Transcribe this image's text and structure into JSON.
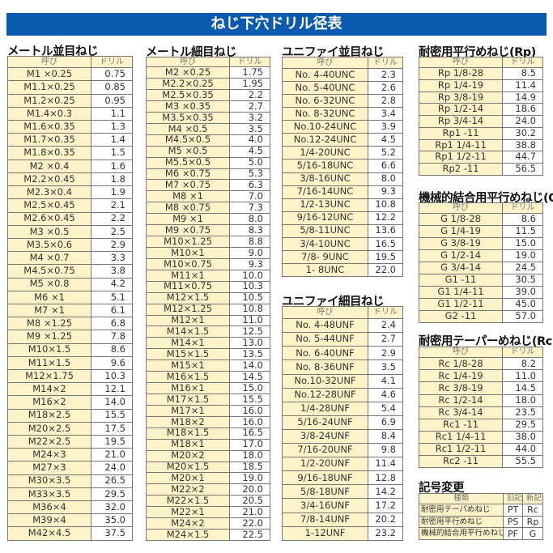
{
  "title": "ねじ下穴ドリル径表",
  "header_labels": {
    "name": "呼び",
    "drill": "ドリル"
  },
  "colors": {
    "title_bg": "#0a5bb0",
    "name_cell_bg": "#fdf3c8"
  },
  "tables": {
    "metric_coarse": {
      "title": "メートル並目ねじ",
      "rows": [
        [
          "M1 ×0.25",
          "0.75"
        ],
        [
          "M1.1×0.25",
          "0.85"
        ],
        [
          "M1.2×0.25",
          "0.95"
        ],
        [
          "M1.4×0.3",
          "1.1"
        ],
        [
          "M1.6×0.35",
          "1.3"
        ],
        [
          "M1.7×0.35",
          "1.4"
        ],
        [
          "M1.8×0.35",
          "1.5"
        ],
        [
          "M2 ×0.4",
          "1.6"
        ],
        [
          "M2.2×0.45",
          "1.8"
        ],
        [
          "M2.3×0.4",
          "1.9"
        ],
        [
          "M2.5×0.45",
          "2.1"
        ],
        [
          "M2.6×0.45",
          "2.2"
        ],
        [
          "M3 ×0.5",
          "2.5"
        ],
        [
          "M3.5×0.6",
          "2.9"
        ],
        [
          "M4 ×0.7",
          "3.3"
        ],
        [
          "M4.5×0.75",
          "3.8"
        ],
        [
          "M5 ×0.8",
          "4.2"
        ],
        [
          "M6 ×1",
          "5.1"
        ],
        [
          "M7 ×1",
          "6.1"
        ],
        [
          "M8 ×1.25",
          "6.8"
        ],
        [
          "M9 ×1.25",
          "7.8"
        ],
        [
          "M10×1.5",
          "8.6"
        ],
        [
          "M11×1.5",
          "9.6"
        ],
        [
          "M12×1.75",
          "10.3"
        ],
        [
          "M14×2",
          "12.1"
        ],
        [
          "M16×2",
          "14.0"
        ],
        [
          "M18×2.5",
          "15.5"
        ],
        [
          "M20×2.5",
          "17.5"
        ],
        [
          "M22×2.5",
          "19.5"
        ],
        [
          "M24×3",
          "21.0"
        ],
        [
          "M27×3",
          "24.0"
        ],
        [
          "M30×3.5",
          "26.5"
        ],
        [
          "M33×3.5",
          "29.5"
        ],
        [
          "M36×4",
          "32.0"
        ],
        [
          "M39×4",
          "35.0"
        ],
        [
          "M42×4.5",
          "37.5"
        ]
      ]
    },
    "metric_fine": {
      "title": "メートル細目ねじ",
      "rows": [
        [
          "M2 ×0.25",
          "1.75"
        ],
        [
          "M2.2×0.25",
          "1.95"
        ],
        [
          "M2.5×0.35",
          "2.2"
        ],
        [
          "M3 ×0.35",
          "2.7"
        ],
        [
          "M3.5×0.35",
          "3.2"
        ],
        [
          "M4 ×0.5",
          "3.5"
        ],
        [
          "M4.5×0.5",
          "4.0"
        ],
        [
          "M5 ×0.5",
          "4.5"
        ],
        [
          "M5.5×0.5",
          "5.0"
        ],
        [
          "M6 ×0.75",
          "5.3"
        ],
        [
          "M7 ×0.75",
          "6.3"
        ],
        [
          "M8 ×1",
          "7.0"
        ],
        [
          "M8 ×0.75",
          "7.3"
        ],
        [
          "M9 ×1",
          "8.0"
        ],
        [
          "M9 ×0.75",
          "8.3"
        ],
        [
          "M10×1.25",
          "8.8"
        ],
        [
          "M10×1",
          "9.0"
        ],
        [
          "M10×0.75",
          "9.3"
        ],
        [
          "M11×1",
          "10.0"
        ],
        [
          "M11×0.75",
          "10.3"
        ],
        [
          "M12×1.5",
          "10.5"
        ],
        [
          "M12×1.25",
          "10.8"
        ],
        [
          "M12×1",
          "11.0"
        ],
        [
          "M14×1.5",
          "12.5"
        ],
        [
          "M14×1",
          "13.0"
        ],
        [
          "M15×1.5",
          "13.5"
        ],
        [
          "M15×1",
          "14.0"
        ],
        [
          "M16×1.5",
          "14.5"
        ],
        [
          "M16×1",
          "15.0"
        ],
        [
          "M17×1.5",
          "15.5"
        ],
        [
          "M17×1",
          "16.0"
        ],
        [
          "M18×2",
          "16.0"
        ],
        [
          "M18×1.5",
          "16.5"
        ],
        [
          "M18×1",
          "17.0"
        ],
        [
          "M20×2",
          "18.0"
        ],
        [
          "M20×1.5",
          "18.5"
        ],
        [
          "M20×1",
          "19.0"
        ],
        [
          "M22×2",
          "20.0"
        ],
        [
          "M22×1.5",
          "20.5"
        ],
        [
          "M22×1",
          "21.0"
        ],
        [
          "M24×2",
          "22.0"
        ],
        [
          "M24×1.5",
          "22.5"
        ]
      ]
    },
    "unc": {
      "title": "ユニファイ並目ねじ",
      "rows": [
        [
          "No. 4-40UNC",
          "2.3"
        ],
        [
          "No. 5-40UNC",
          "2.6"
        ],
        [
          "No. 6-32UNC",
          "2.8"
        ],
        [
          "No. 8-32UNC",
          "3.4"
        ],
        [
          "No.10-24UNC",
          "3.9"
        ],
        [
          "No.12-24UNC",
          "4.5"
        ],
        [
          "1/4-20UNC",
          "5.2"
        ],
        [
          "5/16-18UNC",
          "6.6"
        ],
        [
          "3/8-16UNC",
          "8.0"
        ],
        [
          "7/16-14UNC",
          "9.3"
        ],
        [
          "1/2-13UNC",
          "10.8"
        ],
        [
          "9/16-12UNC",
          "12.2"
        ],
        [
          "5/8-11UNC",
          "13.6"
        ],
        [
          "3/4-10UNC",
          "16.5"
        ],
        [
          "7/8- 9UNC",
          "19.5"
        ],
        [
          "1- 8UNC",
          "22.0"
        ]
      ]
    },
    "unf": {
      "title": "ユニファイ細目ねじ",
      "rows": [
        [
          "No. 4-48UNF",
          "2.4"
        ],
        [
          "No. 5-44UNF",
          "2.7"
        ],
        [
          "No. 6-40UNF",
          "2.9"
        ],
        [
          "No. 8-36UNF",
          "3.5"
        ],
        [
          "No.10-32UNF",
          "4.1"
        ],
        [
          "No.12-28UNF",
          "4.6"
        ],
        [
          "1/4-28UNF",
          "5.4"
        ],
        [
          "5/16-24UNF",
          "6.9"
        ],
        [
          "3/8-24UNF",
          "8.4"
        ],
        [
          "7/16-20UNF",
          "9.8"
        ],
        [
          "1/2-20UNF",
          "11.4"
        ],
        [
          "9/16-18UNF",
          "12.8"
        ],
        [
          "5/8-18UNF",
          "14.2"
        ],
        [
          "3/4-16UNF",
          "17.2"
        ],
        [
          "7/8-14UNF",
          "20.2"
        ],
        [
          "1-12UNF",
          "23.2"
        ]
      ]
    },
    "rp": {
      "title": "耐密用平行めねじ(Rp)",
      "rows": [
        [
          "Rp 1/8-28",
          "8.5"
        ],
        [
          "Rp 1/4-19",
          "11.4"
        ],
        [
          "Rp 3/8-19",
          "14.9"
        ],
        [
          "Rp 1/2-14",
          "18.6"
        ],
        [
          "Rp 3/4-14",
          "24.0"
        ],
        [
          "Rp1 -11",
          "30.2"
        ],
        [
          "Rp1 1/4-11",
          "38.8"
        ],
        [
          "Rp1 1/2-11",
          "44.7"
        ],
        [
          "Rp2 -11",
          "56.5"
        ]
      ]
    },
    "g": {
      "title": "機械的結合用平行めねじ(G)",
      "rows": [
        [
          "G 1/8-28",
          "8.6"
        ],
        [
          "G 1/4-19",
          "11.5"
        ],
        [
          "G 3/8-19",
          "15.0"
        ],
        [
          "G 1/2-14",
          "19.0"
        ],
        [
          "G 3/4-14",
          "24.5"
        ],
        [
          "G1 -11",
          "30.5"
        ],
        [
          "G1 1/4-11",
          "39.0"
        ],
        [
          "G1 1/2-11",
          "45.0"
        ],
        [
          "G2 -11",
          "57.0"
        ]
      ]
    },
    "rc": {
      "title": "耐密用テーパーめねじ(Rc)",
      "rows": [
        [
          "Rc 1/8-28",
          "8.2"
        ],
        [
          "Rc 1/4-19",
          "11.0"
        ],
        [
          "Rc 3/8-19",
          "14.5"
        ],
        [
          "Rc 1/2-14",
          "18.0"
        ],
        [
          "Rc 3/4-14",
          "23.5"
        ],
        [
          "Rc1 -11",
          "29.5"
        ],
        [
          "Rc1 1/4-11",
          "38.0"
        ],
        [
          "Rc1 1/2-11",
          "44.0"
        ],
        [
          "Rc2 -11",
          "55.5"
        ]
      ]
    }
  },
  "symbol_change": {
    "title": "記号変更",
    "headers": [
      "種類",
      "旧記号",
      "新記号"
    ],
    "rows": [
      [
        "耐密用テーパめねじ",
        "PT",
        "Rc"
      ],
      [
        "耐密用平行めねじ",
        "PS",
        "Rp"
      ],
      [
        "機械的結合用平行めねじ",
        "PF",
        "G"
      ]
    ]
  }
}
